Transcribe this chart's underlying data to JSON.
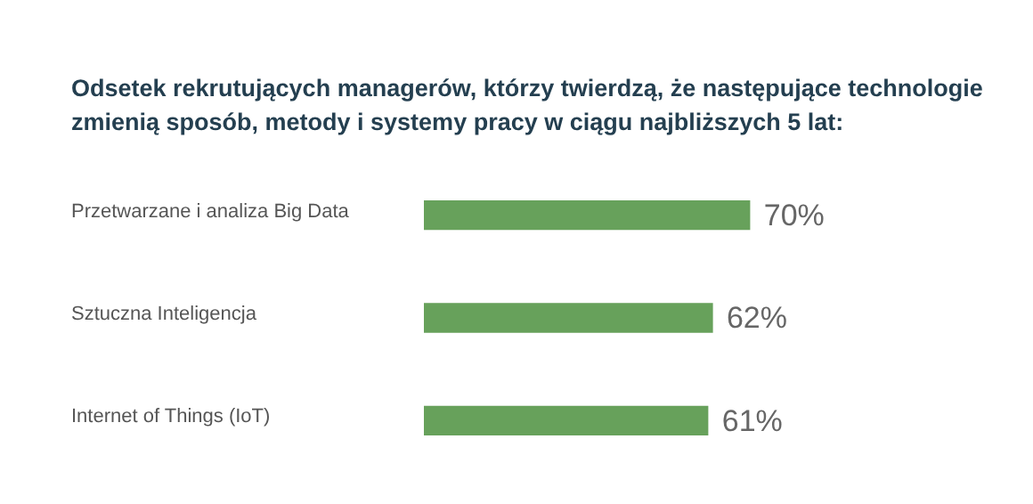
{
  "chart_data": {
    "type": "bar",
    "orientation": "horizontal",
    "title": "Odsetek rekrutujących managerów, którzy twierdzą, że następujące technologie zmienią sposób, metody i systemy pracy w ciągu najbliższych 5 lat:",
    "categories": [
      "Przetwarzane i analiza Big Data",
      "Sztuczna Inteligencja",
      "Internet of Things (IoT)"
    ],
    "values": [
      70,
      62,
      61
    ],
    "value_labels": [
      "70%",
      "62%",
      "61%"
    ],
    "color": "#67a15b"
  }
}
